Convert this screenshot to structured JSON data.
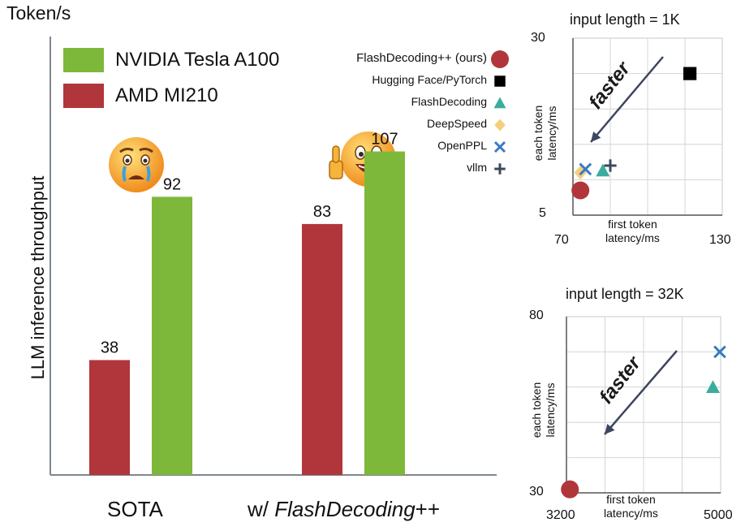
{
  "main_chart": {
    "y_axis_unit": "Token/s",
    "y_axis_label": "LLM inference throughput",
    "legend": [
      {
        "label": "NVIDIA Tesla A100",
        "color": "#7db83a"
      },
      {
        "label": "AMD MI210",
        "color": "#b1363b"
      }
    ]
  },
  "scatter_legend": [
    {
      "label": "FlashDecoding++ (ours)",
      "marker": "circle",
      "color": "#b1363b"
    },
    {
      "label": "Hugging Face/PyTorch",
      "marker": "square",
      "color": "#000000"
    },
    {
      "label": "FlashDecoding",
      "marker": "triangle",
      "color": "#3aada0"
    },
    {
      "label": "DeepSpeed",
      "marker": "diamond",
      "color": "#f5cf7c"
    },
    {
      "label": "OpenPPL",
      "marker": "x",
      "color": "#3b79c4"
    },
    {
      "label": "vllm",
      "marker": "plus",
      "color": "#3d4a5c"
    }
  ],
  "panels": [
    {
      "title": "input length = 1K",
      "y_top": "30",
      "y_bottom": "5",
      "x_left": "70",
      "x_right": "130",
      "y_label_lines": [
        "each token",
        "latency/ms"
      ],
      "x_label_lines": [
        "first token",
        "latency/ms"
      ],
      "arrow_label": "faster"
    },
    {
      "title": "input length = 32K",
      "y_top": "80",
      "y_bottom": "30",
      "x_left": "3200",
      "x_right": "5000",
      "y_label_lines": [
        "each token",
        "latency/ms"
      ],
      "x_label_lines": [
        "first token",
        "latency/ms"
      ],
      "arrow_label": "faster"
    }
  ],
  "chart_data": [
    {
      "type": "bar",
      "title": "",
      "ylabel": "LLM inference throughput",
      "yunit": "Token/s",
      "categories": [
        "SOTA",
        "w/ FlashDecoding++"
      ],
      "category_parts": [
        [
          "SOTA",
          ""
        ],
        [
          "w/ ",
          "FlashDecoding",
          "++"
        ]
      ],
      "series": [
        {
          "name": "AMD MI210",
          "color": "#b1363b",
          "values": [
            38,
            83
          ]
        },
        {
          "name": "NVIDIA Tesla A100",
          "color": "#7db83a",
          "values": [
            92,
            107
          ]
        }
      ],
      "ylim": [
        0,
        145
      ],
      "grid": false,
      "legend_position": "top-left"
    },
    {
      "type": "scatter",
      "title": "input length = 1K",
      "xlabel": "first token latency/ms",
      "ylabel": "each token latency/ms",
      "xlim": [
        70,
        130
      ],
      "ylim": [
        5,
        30
      ],
      "grid": true,
      "series": [
        {
          "name": "FlashDecoding++ (ours)",
          "marker": "circle",
          "color": "#b1363b",
          "points": [
            [
              73,
              8.5
            ]
          ]
        },
        {
          "name": "Hugging Face/PyTorch",
          "marker": "square",
          "color": "#000000",
          "points": [
            [
              117,
              25
            ]
          ]
        },
        {
          "name": "FlashDecoding",
          "marker": "triangle",
          "color": "#3aada0",
          "points": [
            [
              82,
              11.3
            ]
          ]
        },
        {
          "name": "DeepSpeed",
          "marker": "diamond",
          "color": "#f5cf7c",
          "points": [
            [
              73,
              11
            ]
          ]
        },
        {
          "name": "OpenPPL",
          "marker": "x",
          "color": "#3b79c4",
          "points": [
            [
              75,
              11.5
            ]
          ]
        },
        {
          "name": "vllm",
          "marker": "plus",
          "color": "#3d4a5c",
          "points": [
            [
              85,
              12
            ]
          ]
        }
      ]
    },
    {
      "type": "scatter",
      "title": "input length = 32K",
      "xlabel": "first token latency/ms",
      "ylabel": "each token latency/ms",
      "xlim": [
        3200,
        5000
      ],
      "ylim": [
        30,
        80
      ],
      "grid": true,
      "series": [
        {
          "name": "FlashDecoding++ (ours)",
          "marker": "circle",
          "color": "#b1363b",
          "points": [
            [
              3240,
              31
            ]
          ]
        },
        {
          "name": "FlashDecoding",
          "marker": "triangle",
          "color": "#3aada0",
          "points": [
            [
              4910,
              60
            ]
          ]
        },
        {
          "name": "OpenPPL",
          "marker": "x",
          "color": "#3b79c4",
          "points": [
            [
              4990,
              70
            ]
          ]
        }
      ]
    }
  ]
}
